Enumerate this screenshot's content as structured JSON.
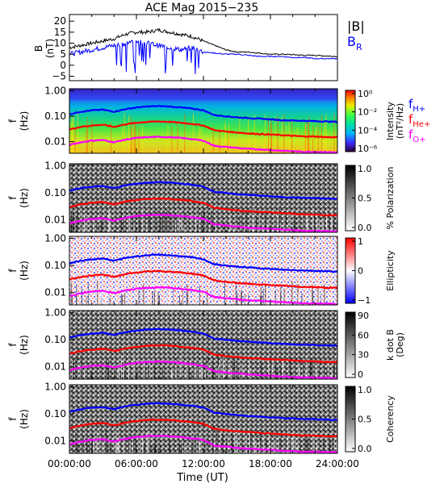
{
  "title": "ACE Mag 2015−235",
  "xlabel": "Time (UT)",
  "colors": {
    "black": "#000000",
    "blue": "#0000ff",
    "red": "#ff0000",
    "magenta": "#ff00ff"
  },
  "chart_data": [
    {
      "type": "line",
      "panel": "field",
      "ylabel": [
        "B",
        "(nT)"
      ],
      "yticks": [
        "20",
        "15",
        "10",
        "5",
        "0",
        "−5"
      ],
      "ylim": [
        -7,
        23
      ],
      "legend": [
        {
          "name": "|B|",
          "color": "#000000"
        },
        {
          "name": "B",
          "sub": "R",
          "color": "#0000ff"
        }
      ],
      "x_hours": [
        0,
        1,
        2,
        3,
        4,
        5,
        6,
        7,
        8,
        9,
        10,
        11,
        12,
        13,
        14,
        15,
        16,
        17,
        18,
        19,
        20,
        21,
        22,
        23,
        24
      ],
      "series": [
        {
          "name": "|B|",
          "color": "#000000",
          "values": [
            8,
            9,
            10,
            11,
            12,
            14,
            15,
            15,
            16,
            15,
            14,
            13,
            11,
            9,
            7,
            6,
            6,
            5.5,
            5,
            5,
            4.8,
            4.5,
            4.5,
            4.2,
            4
          ]
        },
        {
          "name": "B_R",
          "color": "#0000ff",
          "values": [
            5,
            6,
            7,
            8,
            9,
            10,
            11,
            10,
            9,
            8,
            7,
            8,
            6,
            5.5,
            5,
            5,
            4.5,
            4,
            4,
            4,
            3.5,
            3.5,
            3,
            3,
            3
          ]
        }
      ]
    },
    {
      "type": "heatmap",
      "panel": "intensity",
      "ylabel": [
        "f",
        "(Hz)"
      ],
      "yticks": [
        "1.00",
        "0.10",
        "0.01"
      ],
      "colorbar": {
        "label": "Intensity",
        "unit": "(nT²/Hz)",
        "ticks": [
          "10⁰",
          "10⁻²",
          "10⁻⁴",
          "10⁻⁶"
        ]
      },
      "gyro_lines": [
        {
          "name": "f_H+",
          "color": "#0000ff"
        },
        {
          "name": "f_He+",
          "color": "#ff0000"
        },
        {
          "name": "f_O+",
          "color": "#ff00ff"
        }
      ]
    },
    {
      "type": "heatmap",
      "panel": "polarization",
      "ylabel": [
        "f",
        "(Hz)"
      ],
      "yticks": [
        "1.00",
        "0.10",
        "0.01"
      ],
      "colorbar": {
        "label": "% Polarization",
        "ticks": [
          "1.0",
          "0.5",
          "0.0"
        ]
      }
    },
    {
      "type": "heatmap",
      "panel": "ellipticity",
      "ylabel": [
        "f",
        "(Hz)"
      ],
      "yticks": [
        "1.00",
        "0.10",
        "0.01"
      ],
      "colorbar": {
        "label": "Ellipticity",
        "ticks": [
          "1",
          "0",
          "−1"
        ]
      }
    },
    {
      "type": "heatmap",
      "panel": "kdotb",
      "ylabel": [
        "f",
        "(Hz)"
      ],
      "yticks": [
        "1.00",
        "0.10",
        "0.01"
      ],
      "colorbar": {
        "label": "k dot B",
        "unit": "(Deg)",
        "ticks": [
          "90",
          "60",
          "30",
          "0"
        ]
      }
    },
    {
      "type": "heatmap",
      "panel": "coherency",
      "ylabel": [
        "f",
        "(Hz)"
      ],
      "yticks": [
        "1.00",
        "0.10",
        "0.01"
      ],
      "colorbar": {
        "label": "Coherency",
        "ticks": [
          "1.0",
          "0.5",
          "0.0"
        ]
      }
    }
  ],
  "gyrofrequency_hz": {
    "x_hours": [
      0,
      1,
      2,
      3,
      4,
      5,
      6,
      7,
      8,
      9,
      10,
      11,
      12,
      13,
      14,
      15,
      16,
      17,
      18,
      19,
      20,
      21,
      22,
      23,
      24
    ],
    "f_H+": [
      0.12,
      0.15,
      0.17,
      0.18,
      0.15,
      0.19,
      0.22,
      0.24,
      0.25,
      0.24,
      0.22,
      0.2,
      0.17,
      0.11,
      0.1,
      0.09,
      0.085,
      0.08,
      0.075,
      0.07,
      0.068,
      0.066,
      0.064,
      0.062,
      0.06
    ],
    "f_He+": [
      0.03,
      0.038,
      0.043,
      0.046,
      0.038,
      0.048,
      0.055,
      0.06,
      0.062,
      0.06,
      0.055,
      0.05,
      0.043,
      0.028,
      0.025,
      0.023,
      0.021,
      0.02,
      0.019,
      0.018,
      0.017,
      0.016,
      0.016,
      0.015,
      0.015
    ],
    "f_O+": [
      0.0075,
      0.0094,
      0.011,
      0.0115,
      0.0095,
      0.012,
      0.014,
      0.015,
      0.0155,
      0.015,
      0.014,
      0.0125,
      0.011,
      0.0068,
      0.0062,
      0.0057,
      0.0052,
      0.005,
      0.0047,
      0.0044,
      0.0042,
      0.004,
      0.004,
      0.0039,
      0.0038
    ]
  },
  "xticks": [
    "00:00:00",
    "06:00:00",
    "12:00:00",
    "18:00:00",
    "24:00:00"
  ]
}
